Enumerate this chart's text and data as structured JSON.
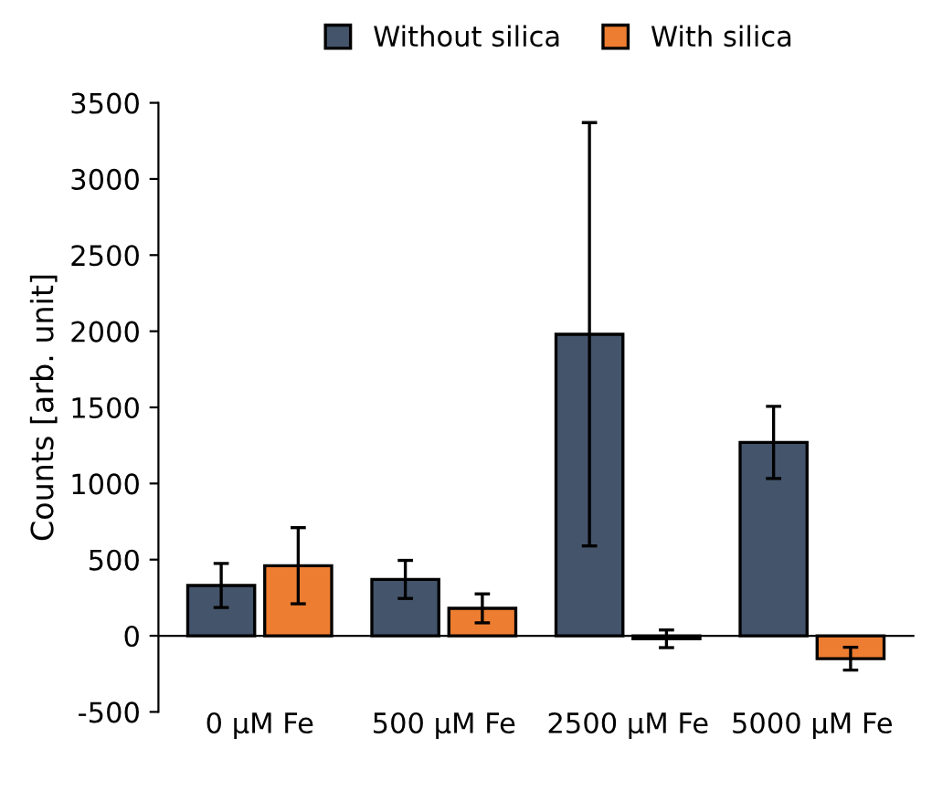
{
  "chart_data": {
    "type": "bar",
    "ylabel": "Counts [arb. unit]",
    "categories": [
      "0 µM Fe",
      "500 µM Fe",
      "2500 µM Fe",
      "5000 µM Fe"
    ],
    "series": [
      {
        "name": "Without silica",
        "color": "#44546a",
        "values": [
          330,
          370,
          1980,
          1270
        ],
        "errors": [
          145,
          125,
          1390,
          237
        ]
      },
      {
        "name": "With silica",
        "color": "#ed7d31",
        "values": [
          460,
          180,
          -20,
          -150
        ],
        "errors": [
          250,
          95,
          58,
          75
        ]
      }
    ],
    "ylim": [
      -500,
      3500
    ],
    "yticks": [
      -500,
      0,
      500,
      1000,
      1500,
      2000,
      2500,
      3000,
      3500
    ],
    "legend": "top"
  }
}
